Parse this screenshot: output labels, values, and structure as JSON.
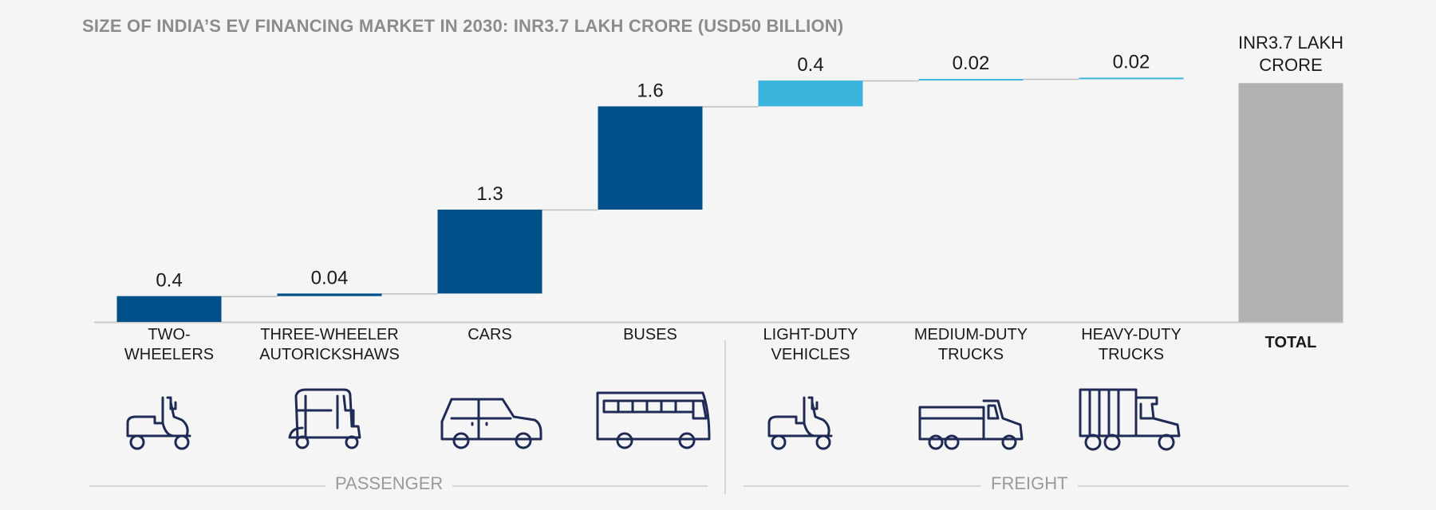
{
  "title": "SIZE OF INDIA’S EV FINANCING MARKET IN 2030: INR3.7 LAKH CRORE (USD50 BILLION)",
  "chart_data": {
    "type": "waterfall",
    "title": "SIZE OF INDIA’S EV FINANCING MARKET IN 2030: INR3.7 LAKH CRORE (USD50 BILLION)",
    "unit": "INR lakh crore",
    "categories": [
      {
        "line1": "TWO-",
        "line2": "WHEELERS"
      },
      {
        "line1": "THREE-WHEELER",
        "line2": "AUTORICKSHAWS"
      },
      {
        "line1": "CARS",
        "line2": ""
      },
      {
        "line1": "BUSES",
        "line2": ""
      },
      {
        "line1": "LIGHT-DUTY",
        "line2": "VEHICLES"
      },
      {
        "line1": "MEDIUM-DUTY",
        "line2": "TRUCKS"
      },
      {
        "line1": "HEAVY-DUTY",
        "line2": "TRUCKS"
      }
    ],
    "values": [
      0.4,
      0.04,
      1.3,
      1.6,
      0.4,
      0.02,
      0.02
    ],
    "labels": [
      "0.4",
      "0.04",
      "1.3",
      "1.6",
      "0.4",
      "0.02",
      "0.02"
    ],
    "groups": [
      "passenger",
      "passenger",
      "passenger",
      "passenger",
      "freight",
      "freight",
      "freight"
    ],
    "total": {
      "label": "TOTAL",
      "value": 3.7,
      "value_line1": "INR3.7 LAKH",
      "value_line2": "CRORE"
    },
    "group_labels": {
      "passenger": "PASSENGER",
      "freight": "FREIGHT"
    },
    "colors": {
      "passenger": "#02508a",
      "freight": "#3bb5de",
      "total": "#b3b2b1",
      "connector": "#bdbdbd"
    }
  },
  "icons": [
    "scooter-icon",
    "autorickshaw-icon",
    "car-icon",
    "bus-icon",
    "scooter-icon",
    "medium-truck-icon",
    "heavy-truck-icon"
  ]
}
